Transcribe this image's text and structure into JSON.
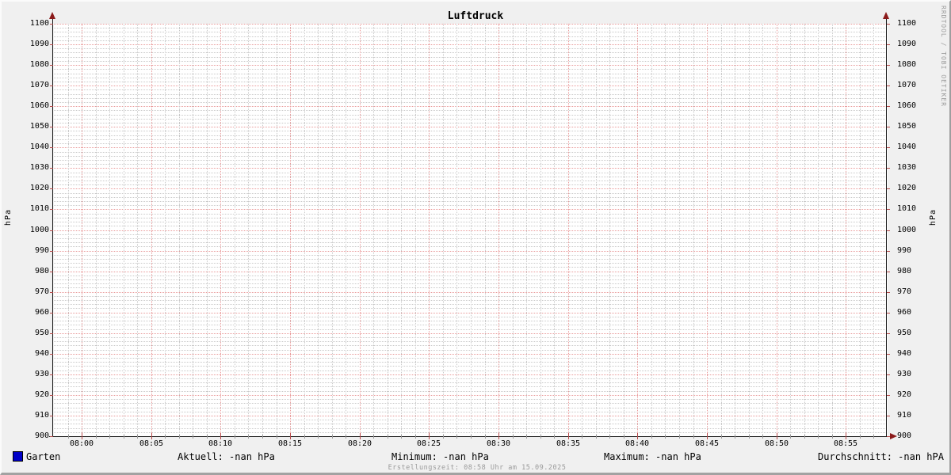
{
  "title": "Luftdruck",
  "watermark": "RRDTOOL / TOBI OETIKER",
  "footer": "Erstellungszeit: 08:58 Uhr am 15.09.2025",
  "legend": {
    "series_label": "Garten",
    "series_color": "#0000c8",
    "stats": [
      {
        "name": "aktuell",
        "text": "Aktuell: -nan hPa"
      },
      {
        "name": "minimum",
        "text": "Minimum: -nan hPa"
      },
      {
        "name": "maximum",
        "text": "Maximum: -nan hPa"
      },
      {
        "name": "durchschnitt",
        "text": "Durchschnitt: -nan hPA"
      }
    ]
  },
  "colors": {
    "background": "#f0f0f0",
    "canvas": "#ffffff",
    "major_grid": "#e99a9a",
    "minor_grid": "#c9c9c9",
    "tick_major": "#b84a4a",
    "tick_minor": "#9a9a9a",
    "axis": "#1a1a1a",
    "arrow": "#8b1a1a",
    "series_garten": "#0000c8",
    "muted_text": "#9a9a9a"
  },
  "chart_data": {
    "type": "line",
    "title": "Luftdruck",
    "ylabel_left": "hPa",
    "ylabel_right": "hPa",
    "ylim": [
      900,
      1100
    ],
    "y_major_step": 10,
    "y_minor_step": 2,
    "x_tick_labels": [
      "08:00",
      "08:05",
      "08:10",
      "08:15",
      "08:20",
      "08:25",
      "08:30",
      "08:35",
      "08:40",
      "08:45",
      "08:50",
      "08:55"
    ],
    "x_total_min": 60,
    "x_start_offset_min": 2,
    "x_major_step_min": 5,
    "x_minor_step_min": 1,
    "grid": true,
    "legend_position": "bottom",
    "series": [
      {
        "name": "Garten",
        "color": "#0000c8",
        "values": []
      }
    ]
  }
}
